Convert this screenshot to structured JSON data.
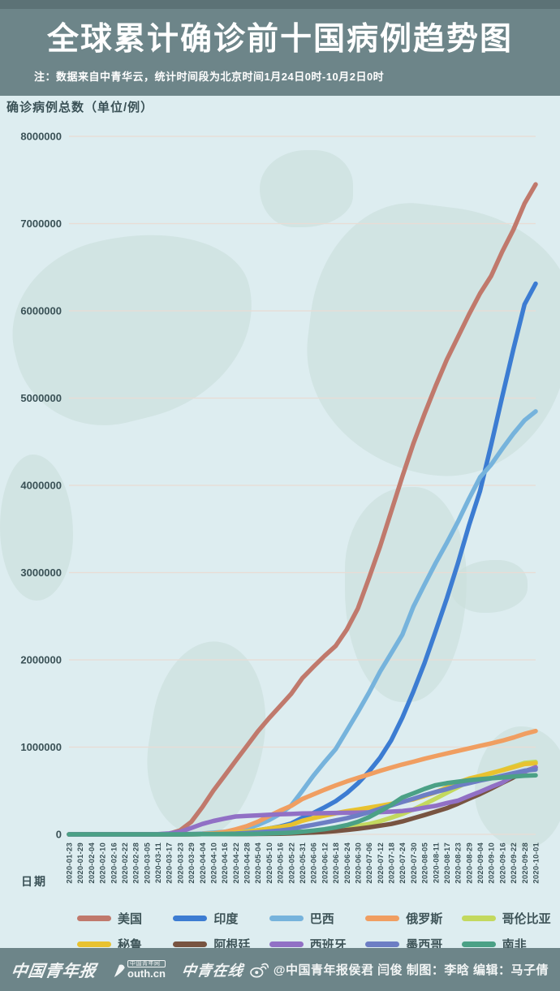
{
  "header": {
    "title": "全球累计确诊前十国病例趋势图",
    "note": "注：数据来自中青华云，统计时间段为北京时间1月24日0时-10月2日0时"
  },
  "chart": {
    "y_axis_title": "确诊病例总数（单位/例）",
    "x_axis_title": "日期"
  },
  "colors": {
    "header_bg": "#6d8589",
    "header_strip": "#5c7276",
    "page_bg": "#ddedf0",
    "gridline": "#e9dcd4",
    "axis_text": "#3a5156",
    "footer_bg": "#6d8589"
  },
  "chart_data": {
    "type": "line",
    "title": "全球累计确诊前十国病例趋势图",
    "xlabel": "日期",
    "ylabel": "确诊病例总数（单位/例）",
    "ylim": [
      0,
      8000000
    ],
    "y_ticks": [
      0,
      1000000,
      2000000,
      3000000,
      4000000,
      5000000,
      6000000,
      7000000,
      8000000
    ],
    "grid": true,
    "legend_position": "bottom",
    "x": [
      "2020-01-23",
      "2020-01-29",
      "2020-02-04",
      "2020-02-10",
      "2020-02-16",
      "2020-02-22",
      "2020-02-28",
      "2020-03-05",
      "2020-03-11",
      "2020-03-17",
      "2020-03-23",
      "2020-03-29",
      "2020-04-04",
      "2020-04-10",
      "2020-04-16",
      "2020-04-22",
      "2020-04-28",
      "2020-05-04",
      "2020-05-10",
      "2020-05-16",
      "2020-05-22",
      "2020-05-31",
      "2020-06-06",
      "2020-06-12",
      "2020-06-18",
      "2020-06-24",
      "2020-06-30",
      "2020-07-06",
      "2020-07-12",
      "2020-07-18",
      "2020-07-24",
      "2020-07-30",
      "2020-08-05",
      "2020-08-11",
      "2020-08-17",
      "2020-08-23",
      "2020-08-29",
      "2020-09-04",
      "2020-09-10",
      "2020-09-16",
      "2020-09-22",
      "2020-09-28",
      "2020-10-01"
    ],
    "series": [
      {
        "name": "美国",
        "color": "#c0796c",
        "values": [
          0,
          0,
          11,
          12,
          15,
          35,
          60,
          220,
          1300,
          6400,
          46000,
          142000,
          312000,
          502000,
          672000,
          843000,
          1010000,
          1180000,
          1330000,
          1470000,
          1610000,
          1790000,
          1920000,
          2045000,
          2160000,
          2347000,
          2590000,
          2936000,
          3300000,
          3700000,
          4100000,
          4480000,
          4820000,
          5140000,
          5440000,
          5700000,
          5960000,
          6200000,
          6400000,
          6680000,
          6930000,
          7230000,
          7450000
        ]
      },
      {
        "name": "印度",
        "color": "#3c7cd2",
        "values": [
          0,
          0,
          3,
          3,
          3,
          3,
          3,
          30,
          62,
          140,
          500,
          1000,
          3000,
          7600,
          13400,
          21400,
          31300,
          46400,
          67200,
          90600,
          125000,
          190000,
          246000,
          310000,
          380000,
          473000,
          585000,
          720000,
          878000,
          1077000,
          1337000,
          1638000,
          1964000,
          2329000,
          2702000,
          3106000,
          3542000,
          3936000,
          4465000,
          5020000,
          5562000,
          6074000,
          6312000
        ]
      },
      {
        "name": "巴西",
        "color": "#76b3dc",
        "values": [
          0,
          0,
          0,
          0,
          0,
          0,
          1,
          8,
          52,
          300,
          2200,
          4300,
          10300,
          19600,
          28900,
          45800,
          71900,
          107800,
          162700,
          233100,
          330900,
          498400,
          672800,
          828800,
          978100,
          1188600,
          1402000,
          1623300,
          1864700,
          2074900,
          2287500,
          2610100,
          2862800,
          3109600,
          3340200,
          3582400,
          3846900,
          4091800,
          4238400,
          4419100,
          4591600,
          4745500,
          4847000
        ]
      },
      {
        "name": "俄罗斯",
        "color": "#f09e61",
        "values": [
          0,
          0,
          2,
          2,
          2,
          2,
          2,
          4,
          20,
          114,
          438,
          1534,
          4700,
          11900,
          27900,
          57900,
          93500,
          145200,
          209700,
          272000,
          326400,
          405800,
          458700,
          511400,
          561100,
          606900,
          647800,
          687900,
          727200,
          765400,
          800800,
          832900,
          866600,
          897600,
          927700,
          956700,
          985300,
          1015100,
          1042800,
          1073800,
          1110000,
          1151400,
          1185200
        ]
      },
      {
        "name": "哥伦比亚",
        "color": "#c3d95e",
        "values": [
          0,
          0,
          0,
          0,
          0,
          0,
          0,
          0,
          3,
          65,
          277,
          702,
          1400,
          2400,
          3200,
          4300,
          5600,
          7800,
          11000,
          14200,
          19100,
          29400,
          38000,
          46900,
          60200,
          78000,
          97800,
          117400,
          150400,
          190700,
          233500,
          286000,
          345700,
          410500,
          476600,
          541100,
          607900,
          658400,
          694700,
          736400,
          777500,
          818200,
          829700
        ]
      },
      {
        "name": "秘鲁",
        "color": "#e8c22f",
        "values": [
          0,
          0,
          0,
          0,
          0,
          0,
          0,
          0,
          17,
          117,
          395,
          852,
          1600,
          6000,
          12500,
          20900,
          31200,
          47400,
          67300,
          84500,
          108800,
          155700,
          187400,
          214800,
          241700,
          264700,
          285200,
          305700,
          326200,
          350000,
          375900,
          400700,
          439900,
          483100,
          535900,
          594300,
          639400,
          670100,
          702800,
          733900,
          768900,
          805300,
          814800
        ]
      },
      {
        "name": "阿根廷",
        "color": "#785441",
        "values": [
          0,
          0,
          0,
          0,
          0,
          0,
          0,
          1,
          19,
          65,
          266,
          745,
          1500,
          2000,
          2600,
          3200,
          4000,
          4800,
          6000,
          7800,
          10000,
          16200,
          21000,
          28000,
          37500,
          49800,
          64500,
          80400,
          100000,
          119300,
          148000,
          185400,
          221000,
          260900,
          299100,
          350900,
          408400,
          461900,
          524200,
          589000,
          652200,
          723100,
          765000
        ]
      },
      {
        "name": "西班牙",
        "color": "#9170c5",
        "values": [
          0,
          0,
          0,
          0,
          2,
          2,
          32,
          200,
          2200,
          9900,
          28800,
          72200,
          119200,
          153200,
          180700,
          204200,
          210800,
          217500,
          224400,
          230200,
          233700,
          239400,
          241000,
          243000,
          245300,
          247500,
          249300,
          252100,
          254700,
          260300,
          267500,
          282600,
          305800,
          326600,
          359100,
          386100,
          439300,
          488500,
          543400,
          593700,
          671500,
          716500,
          769200
        ]
      },
      {
        "name": "墨西哥",
        "color": "#6d7ec4",
        "values": [
          0,
          0,
          0,
          0,
          0,
          0,
          1,
          5,
          11,
          82,
          316,
          848,
          1900,
          3400,
          5900,
          9500,
          15500,
          23500,
          33500,
          45000,
          59600,
          87500,
          110000,
          133900,
          159800,
          185100,
          216800,
          252100,
          295300,
          331300,
          371000,
          408400,
          449900,
          485800,
          518200,
          557000,
          585700,
          616500,
          642900,
          671700,
          700600,
          730300,
          743200
        ]
      },
      {
        "name": "南非",
        "color": "#4ba186",
        "values": [
          0,
          0,
          0,
          0,
          0,
          0,
          0,
          1,
          13,
          62,
          274,
          1200,
          1600,
          2000,
          2500,
          3500,
          4800,
          6700,
          10000,
          14400,
          19100,
          30900,
          43400,
          58600,
          80400,
          106100,
          144300,
          196800,
          264200,
          337600,
          422000,
          471100,
          521300,
          563600,
          587300,
          603300,
          620100,
          633000,
          642400,
          651500,
          661900,
          672600,
          676100
        ]
      }
    ]
  },
  "footer": {
    "logo_cyd": "中国青年报",
    "youth_badge": "中国青年网",
    "youth_main": "outh.cn",
    "logo_zqzx": "中青在线",
    "credit": "@中国青年报侯君 闫俊 制图：李晗 编辑：马子倩"
  }
}
